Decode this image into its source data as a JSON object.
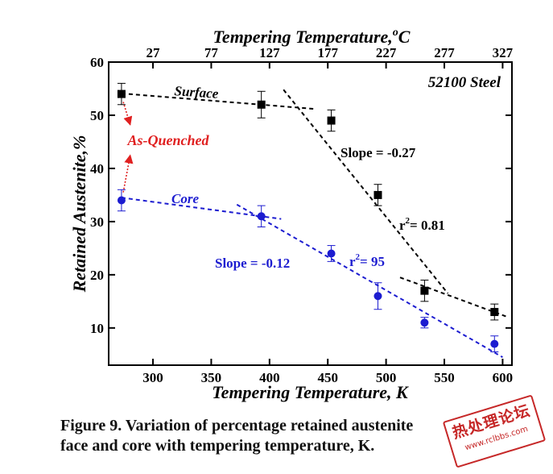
{
  "chart_data": {
    "type": "scatter",
    "title": "",
    "xlabel": "Tempering Temperature, K",
    "x2label_prefix": "Tempering Temperature,",
    "x2label_degree": "o",
    "x2label_unit": "C",
    "ylabel": "Retained Austenite,%",
    "xlim": [
      262,
      608
    ],
    "ylim": [
      3,
      60
    ],
    "xticks": [
      300,
      350,
      400,
      450,
      500,
      550,
      600
    ],
    "yticks": [
      10,
      20,
      30,
      40,
      50,
      60
    ],
    "x2ticks": [
      27,
      77,
      127,
      177,
      227,
      277,
      327
    ],
    "grid": false,
    "legend": "none",
    "series": [
      {
        "name": "Surface",
        "color": "#000000",
        "marker": "square",
        "x": [
          273,
          393,
          453,
          493,
          533,
          593
        ],
        "y": [
          54,
          52,
          49,
          35,
          17,
          13
        ],
        "yerr": [
          2,
          2.5,
          2,
          2,
          2,
          1.5
        ]
      },
      {
        "name": "Core",
        "color": "#1c1cd0",
        "marker": "circle",
        "x": [
          273,
          393,
          453,
          493,
          533,
          593
        ],
        "y": [
          34,
          31,
          24,
          16,
          11,
          7
        ],
        "yerr": [
          2,
          2,
          1.5,
          2.5,
          1,
          1.5
        ]
      }
    ],
    "fit_lines": [
      {
        "color": "#000000",
        "x": [
          273,
          438
        ],
        "y": [
          54.1,
          51.2
        ]
      },
      {
        "color": "#000000",
        "x": [
          412,
          553
        ],
        "y": [
          54.8,
          16.5
        ]
      },
      {
        "color": "#000000",
        "x": [
          512,
          605
        ],
        "y": [
          19.5,
          12
        ]
      },
      {
        "color": "#1c1cd0",
        "x": [
          273,
          410
        ],
        "y": [
          34.5,
          30.5
        ]
      },
      {
        "color": "#1c1cd0",
        "x": [
          372,
          600
        ],
        "y": [
          33.2,
          4.5
        ]
      }
    ],
    "annotations": {
      "steel": "52100 Steel",
      "surface": "Surface",
      "core": "Core",
      "as_quenched": "As-Quenched",
      "slope_surface": "Slope = -0.27",
      "r2_surface_prefix": "r",
      "r2_surface_exp": "2",
      "r2_surface_value": "= 0.81",
      "slope_core": "Slope = -0.12",
      "r2_core_prefix": "r",
      "r2_core_exp": "2",
      "r2_core_value": "= 95"
    },
    "colors": {
      "surface": "#000000",
      "core": "#1c1cd0",
      "as_quenched": "#e02020"
    }
  },
  "caption": {
    "line1": "Figure 9. Variation of percentage retained austenite",
    "line2": "face and core with tempering temperature, K."
  },
  "watermark": {
    "line1": "热处理论坛",
    "line2": "www.rclbbs.com"
  }
}
